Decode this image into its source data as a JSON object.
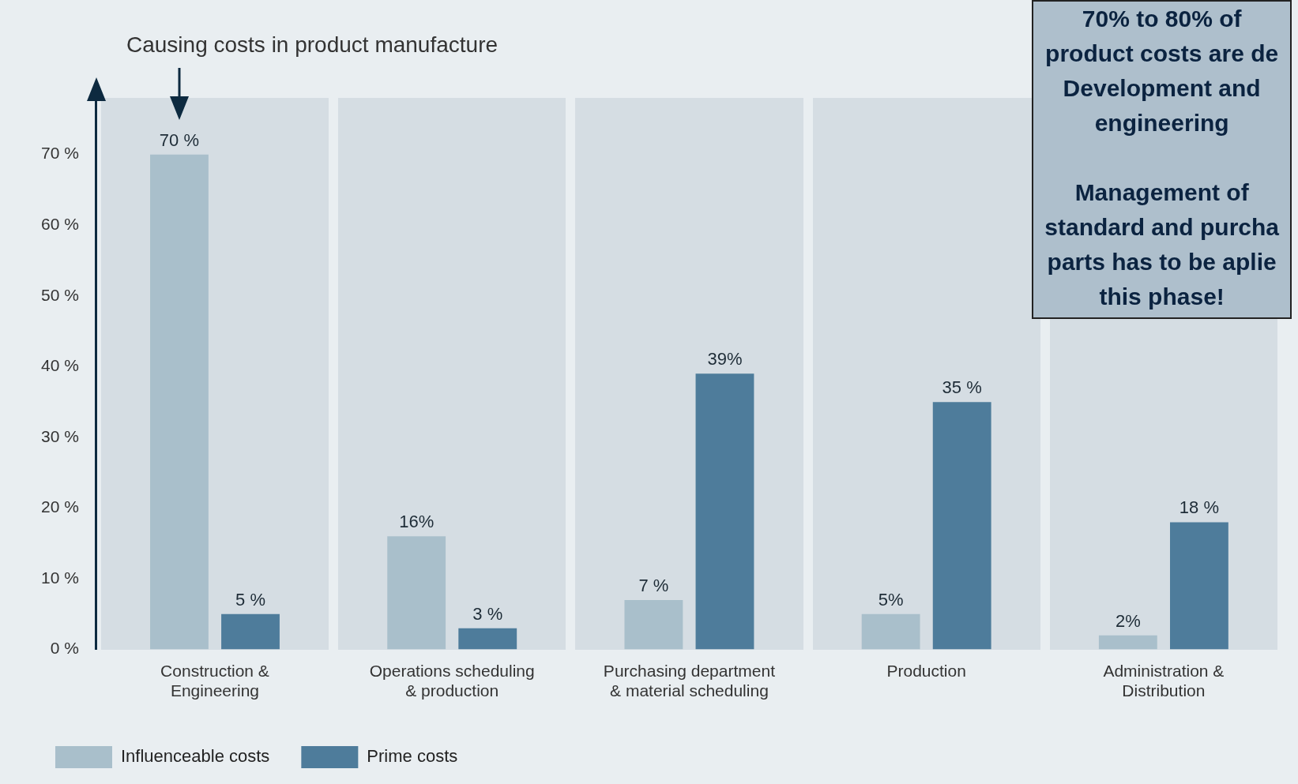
{
  "chart_data": {
    "type": "bar",
    "categories": [
      "Construction & Engineering",
      "Operations scheduling & production",
      "Purchasing department & material scheduling",
      "Production",
      "Administration & Distribution"
    ],
    "series": [
      {
        "name": "Influenceable costs",
        "color": "#a9bfcb",
        "values": [
          70,
          16,
          7,
          5,
          2
        ],
        "value_labels": [
          "70 %",
          "16%",
          "7 %",
          "5%",
          "2%"
        ]
      },
      {
        "name": "Prime costs",
        "color": "#4e7c9b",
        "values": [
          5,
          3,
          39,
          35,
          18
        ],
        "value_labels": [
          "5 %",
          "3 %",
          "39%",
          "35 %",
          "18 %"
        ]
      }
    ],
    "ylim": [
      0,
      78
    ],
    "yticks": [
      {
        "value": 0,
        "label": "0 %"
      },
      {
        "value": 10,
        "label": "10 %"
      },
      {
        "value": 20,
        "label": "20 %"
      },
      {
        "value": 30,
        "label": "30 %"
      },
      {
        "value": 40,
        "label": "40 %"
      },
      {
        "value": 50,
        "label": "50 %"
      },
      {
        "value": 60,
        "label": "60 %"
      },
      {
        "value": 70,
        "label": "70 %"
      }
    ],
    "grid": false,
    "legend": "bottom left",
    "annotations": [
      "Causing costs in product manufacture",
      "70% to 80% of\nproduct costs are de\nDevelopment and\nengineering\n\nManagement of\nstandard and purcha\nparts has to be aplie\nthis phase!"
    ]
  }
}
